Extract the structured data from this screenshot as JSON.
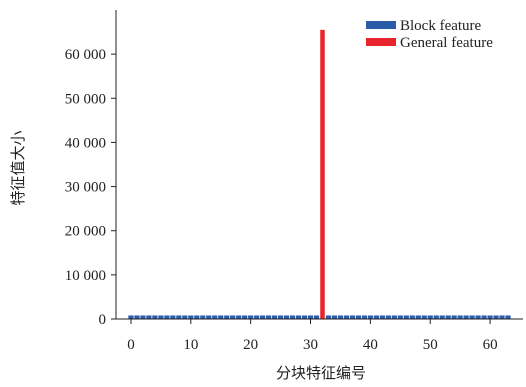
{
  "chart_data": {
    "type": "bar",
    "xlabel": "分块特征编号",
    "ylabel": "特征值大小",
    "xlim": [
      -2.5,
      65.5
    ],
    "ylim": [
      0,
      70000
    ],
    "xticks": [
      0,
      10,
      20,
      30,
      40,
      50,
      60
    ],
    "xtick_labels": [
      "0",
      "10",
      "20",
      "30",
      "40",
      "50",
      "60"
    ],
    "yticks": [
      0,
      10000,
      20000,
      30000,
      40000,
      50000,
      60000
    ],
    "ytick_labels": [
      "0",
      "10 000",
      "20 000",
      "30 000",
      "40 000",
      "50 000",
      "60 000"
    ],
    "legend_position": "top-right",
    "series": [
      {
        "name": "Block feature",
        "color": "#2a5caa",
        "x": [
          0,
          1,
          2,
          3,
          4,
          5,
          6,
          7,
          8,
          9,
          10,
          11,
          12,
          13,
          14,
          15,
          16,
          17,
          18,
          19,
          20,
          21,
          22,
          23,
          24,
          25,
          26,
          27,
          28,
          29,
          30,
          31,
          33,
          34,
          35,
          36,
          37,
          38,
          39,
          40,
          41,
          42,
          43,
          44,
          45,
          46,
          47,
          48,
          49,
          50,
          51,
          52,
          53,
          54,
          55,
          56,
          57,
          58,
          59,
          60,
          61,
          62,
          63
        ],
        "values": [
          800,
          800,
          800,
          800,
          800,
          800,
          800,
          800,
          800,
          800,
          800,
          800,
          800,
          800,
          800,
          800,
          800,
          800,
          800,
          800,
          800,
          800,
          800,
          800,
          800,
          800,
          800,
          800,
          800,
          800,
          800,
          800,
          800,
          800,
          800,
          800,
          800,
          800,
          800,
          800,
          800,
          800,
          800,
          800,
          800,
          800,
          800,
          800,
          800,
          800,
          800,
          800,
          800,
          800,
          800,
          800,
          800,
          800,
          800,
          800,
          800,
          800,
          800
        ]
      },
      {
        "name": "General feature",
        "color": "#e8242c",
        "x": [
          32
        ],
        "values": [
          65500
        ]
      }
    ]
  }
}
